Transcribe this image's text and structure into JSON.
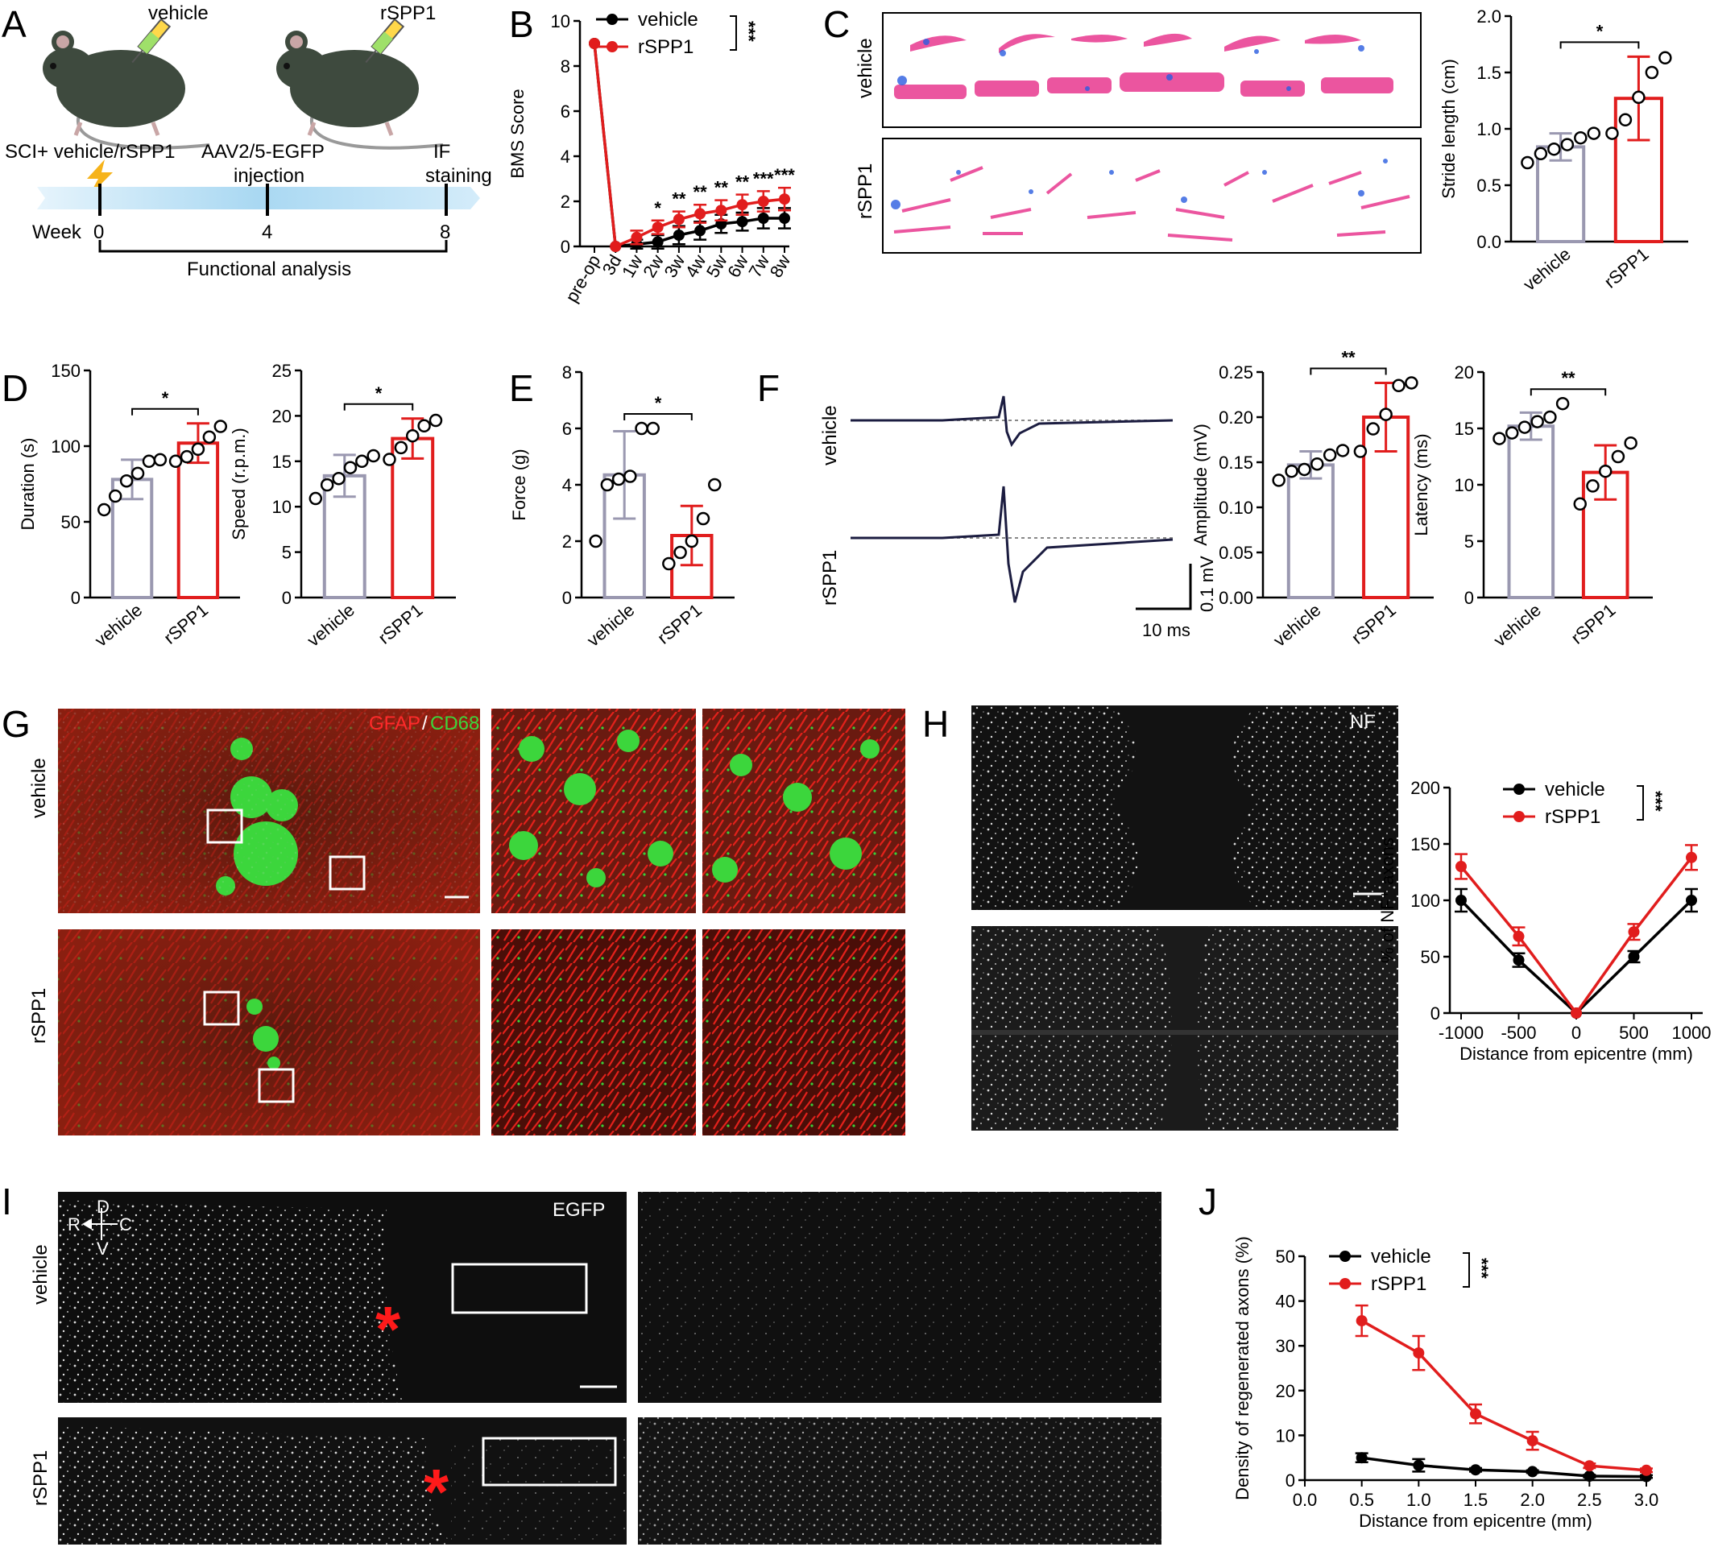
{
  "panel_labels": [
    "A",
    "B",
    "C",
    "D",
    "E",
    "F",
    "G",
    "H",
    "I",
    "J"
  ],
  "colors": {
    "vehicle_dark": "#000000",
    "vehicle_bar": "#9a98b0",
    "rspp1": "#e11d1d",
    "mouse": "#3e4a3e",
    "timeline": "#a9d8f2"
  },
  "panel_a": {
    "mouse_labels": [
      "vehicle",
      "rSPP1"
    ],
    "timeline_events": [
      "SCI+ vehicle/rSPP1",
      "AAV2/5-EGFP",
      "injection",
      "IF",
      "staining"
    ],
    "week_label": "Week",
    "weeks": [
      "0",
      "4",
      "8"
    ],
    "bracket_label": "Functional analysis"
  },
  "panel_c_images": {
    "row_labels": [
      "vehicle",
      "rSPP1"
    ]
  },
  "panel_f_traces": {
    "row_labels": [
      "vehicle",
      "rSPP1"
    ],
    "scale_y": "0.1 mV",
    "scale_x": "10 ms"
  },
  "panel_g_images": {
    "row_labels": [
      "vehicle",
      "rSPP1"
    ],
    "stain_a": "GFAP",
    "stain_sep": "/",
    "stain_b": "CD68"
  },
  "panel_h_images": {
    "stain": "NF"
  },
  "panel_i_images": {
    "row_labels": [
      "vehicle",
      "rSPP1"
    ],
    "stain": "EGFP",
    "compass": {
      "d": "D",
      "r": "R",
      "c": "C",
      "v": "V"
    },
    "lesion_mark": "*"
  },
  "chart_data": [
    {
      "id": "B",
      "type": "line",
      "xlabel": "",
      "ylabel": "BMS Score",
      "ylim": [
        0,
        10
      ],
      "yticks": [
        0,
        2,
        4,
        6,
        8,
        10
      ],
      "categories": [
        "pre-op",
        "3d",
        "1w",
        "2w",
        "3w",
        "4w",
        "5w",
        "6w",
        "7w",
        "8w"
      ],
      "series": [
        {
          "name": "vehicle",
          "values": [
            9,
            0,
            0.1,
            0.2,
            0.5,
            0.7,
            1.0,
            1.1,
            1.25,
            1.25
          ],
          "errors": [
            0,
            0,
            0.2,
            0.3,
            0.4,
            0.4,
            0.4,
            0.4,
            0.45,
            0.45
          ]
        },
        {
          "name": "rSPP1",
          "values": [
            9,
            0,
            0.4,
            0.85,
            1.2,
            1.45,
            1.6,
            1.85,
            2.0,
            2.1
          ],
          "errors": [
            0,
            0,
            0.3,
            0.3,
            0.35,
            0.4,
            0.45,
            0.45,
            0.45,
            0.5
          ]
        }
      ],
      "significance": [
        "",
        "",
        "",
        "*",
        "**",
        "**",
        "**",
        "**",
        "***",
        "***"
      ],
      "legend_sig": "***"
    },
    {
      "id": "C",
      "type": "bar",
      "ylabel": "Stride length (cm)",
      "ylim": [
        0,
        2.0
      ],
      "yticks": [
        "0.0",
        "0.5",
        "1.0",
        "1.5",
        "2.0"
      ],
      "categories": [
        "vehicle",
        "rSPP1"
      ],
      "values": [
        0.84,
        1.27
      ],
      "errors": [
        0.12,
        0.37
      ],
      "points": [
        [
          0.7,
          0.78,
          0.82,
          0.86,
          0.92,
          0.96
        ],
        [
          0.96,
          1.08,
          1.28,
          1.5,
          1.63
        ]
      ],
      "significance": "*"
    },
    {
      "id": "D1",
      "type": "bar",
      "ylabel": "Duration (s)",
      "ylim": [
        0,
        150
      ],
      "yticks": [
        "0",
        "50",
        "100",
        "150"
      ],
      "categories": [
        "vehicle",
        "rSPP1"
      ],
      "values": [
        78,
        102
      ],
      "errors": [
        13,
        13
      ],
      "points": [
        [
          58,
          67,
          77,
          82,
          90,
          91
        ],
        [
          90,
          93,
          98,
          106,
          113
        ]
      ],
      "significance": "*"
    },
    {
      "id": "D2",
      "type": "bar",
      "ylabel": "Speed (r.p.m.)",
      "ylim": [
        0,
        25
      ],
      "yticks": [
        "0",
        "5",
        "10",
        "15",
        "20",
        "25"
      ],
      "categories": [
        "vehicle",
        "rSPP1"
      ],
      "values": [
        13.4,
        17.5
      ],
      "errors": [
        2.3,
        2.2
      ],
      "points": [
        [
          10.9,
          12.4,
          13.1,
          14.3,
          15.0,
          15.6
        ],
        [
          15.2,
          16.5,
          17.8,
          18.9,
          19.5
        ]
      ],
      "significance": "*"
    },
    {
      "id": "E",
      "type": "bar",
      "ylabel": "Force (g)",
      "ylim": [
        0,
        8
      ],
      "yticks": [
        "0",
        "2",
        "4",
        "6",
        "8"
      ],
      "categories": [
        "vehicle",
        "rSPP1"
      ],
      "values": [
        4.35,
        2.2
      ],
      "errors": [
        1.55,
        1.05
      ],
      "points": [
        [
          2.0,
          4.0,
          4.2,
          4.3,
          6.0,
          6.0
        ],
        [
          1.2,
          1.6,
          2.0,
          2.8,
          4.0
        ]
      ],
      "significance": "*"
    },
    {
      "id": "F1",
      "type": "bar",
      "ylabel": "Amplitude (mV)",
      "ylim": [
        0,
        0.25
      ],
      "yticks": [
        "0.00",
        "0.05",
        "0.10",
        "0.15",
        "0.20",
        "0.25"
      ],
      "categories": [
        "vehicle",
        "rSPP1"
      ],
      "values": [
        0.147,
        0.2
      ],
      "errors": [
        0.015,
        0.038
      ],
      "points": [
        [
          0.13,
          0.14,
          0.142,
          0.148,
          0.158,
          0.163
        ],
        [
          0.162,
          0.187,
          0.203,
          0.235,
          0.238
        ]
      ],
      "significance": "**"
    },
    {
      "id": "F2",
      "type": "bar",
      "ylabel": "Latency (ms)",
      "ylim": [
        0,
        20
      ],
      "yticks": [
        "0",
        "5",
        "10",
        "15",
        "20"
      ],
      "categories": [
        "vehicle",
        "rSPP1"
      ],
      "values": [
        15.2,
        11.1
      ],
      "errors": [
        1.2,
        2.4
      ],
      "points": [
        [
          14.1,
          14.6,
          15.1,
          15.6,
          16.0,
          17.2
        ],
        [
          8.3,
          9.9,
          11.2,
          12.5,
          13.7
        ]
      ],
      "significance": "**"
    },
    {
      "id": "H",
      "type": "line",
      "xlabel": "Distance from epicentre (mm)",
      "ylabel": "% of NF⁺ axons",
      "ylim": [
        0,
        200
      ],
      "yticks": [
        "0",
        "50",
        "100",
        "150",
        "200"
      ],
      "x": [
        -1000,
        -500,
        0,
        500,
        1000
      ],
      "xticks": [
        "-1000",
        "-500",
        "0",
        "500",
        "1000"
      ],
      "series": [
        {
          "name": "vehicle",
          "values": [
            100,
            47,
            0,
            50,
            100
          ],
          "errors": [
            10,
            6,
            0,
            5,
            10
          ]
        },
        {
          "name": "rSPP1",
          "values": [
            130,
            68,
            0,
            72,
            138
          ],
          "errors": [
            11,
            8,
            0,
            7,
            11
          ]
        }
      ],
      "legend_sig": "***"
    },
    {
      "id": "J",
      "type": "line",
      "xlabel": "Distance from epicentre (mm)",
      "ylabel": "Density of regenerated axons (%)",
      "ylim": [
        0,
        50
      ],
      "yticks": [
        "0",
        "10",
        "20",
        "30",
        "40",
        "50"
      ],
      "x": [
        0.5,
        1.0,
        1.5,
        2.0,
        2.5,
        3.0
      ],
      "xticks": [
        "0.0",
        "0.5",
        "1.0",
        "1.5",
        "2.0",
        "2.5",
        "3.0"
      ],
      "series": [
        {
          "name": "vehicle",
          "values": [
            5.0,
            3.3,
            2.3,
            1.9,
            0.9,
            0.8
          ],
          "errors": [
            1.0,
            1.4,
            0.4,
            0.3,
            0.3,
            0.3
          ]
        },
        {
          "name": "rSPP1",
          "values": [
            35.6,
            28.4,
            14.8,
            8.8,
            3.2,
            2.2
          ],
          "errors": [
            3.4,
            3.8,
            2.1,
            2.0,
            0.5,
            0.4
          ]
        }
      ],
      "legend_sig": "***"
    }
  ]
}
